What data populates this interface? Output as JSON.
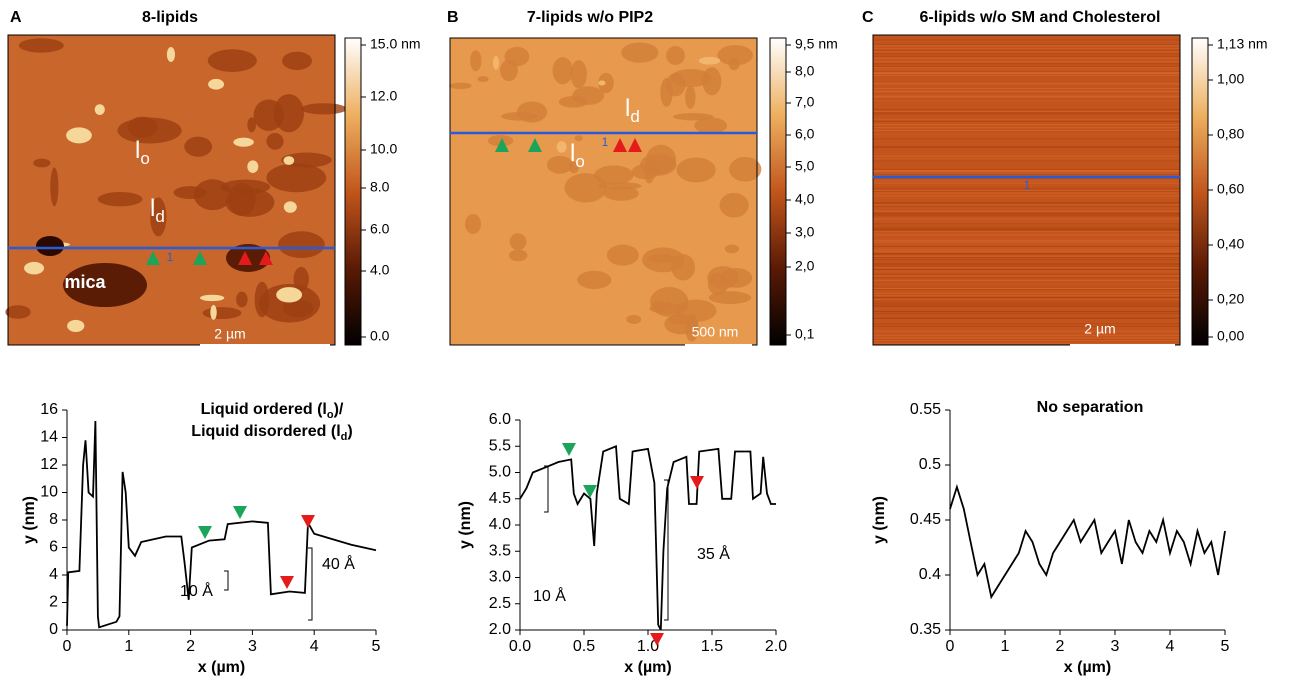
{
  "panels": [
    {
      "label": "A",
      "title": "8-lipids",
      "colorbar": [
        "15.0 nm",
        "12.0",
        "10.0",
        "8.0",
        "6.0",
        "4.0",
        "0.0"
      ],
      "image_labels": [
        {
          "main": "l",
          "sub": "o"
        },
        {
          "main": "l",
          "sub": "d"
        }
      ],
      "texts": [
        "mica",
        "1",
        "2 µm"
      ]
    },
    {
      "label": "B",
      "title": "7-lipids w/o PIP2",
      "colorbar": [
        "9,5 nm",
        "8,0",
        "7,0",
        "6,0",
        "5,0",
        "4,0",
        "3,0",
        "2,0",
        "0,1"
      ],
      "image_labels": [
        {
          "main": "l",
          "sub": "d"
        },
        {
          "main": "l",
          "sub": "o"
        }
      ],
      "texts": [
        "1",
        "500 nm"
      ]
    },
    {
      "label": "C",
      "title": "6-lipids w/o SM and Cholesterol",
      "colorbar": [
        "1,13 nm",
        "1,00",
        "0,80",
        "0,60",
        "0,40",
        "0,20",
        "0,00"
      ],
      "image_labels": [],
      "texts": [
        "1",
        "2 µm"
      ]
    }
  ],
  "chart_data": [
    {
      "type": "line",
      "title": [
        [
          "Liquid ordered (l",
          "o",
          ")/"
        ],
        [
          "Liquid disordered (l",
          "d",
          ")"
        ]
      ],
      "xlabel": "x (µm)",
      "ylabel": "y (nm)",
      "x": [
        0,
        0.02,
        0.2,
        0.26,
        0.3,
        0.35,
        0.42,
        0.46,
        0.5,
        0.52,
        0.8,
        0.85,
        0.9,
        0.95,
        1.0,
        1.1,
        1.2,
        1.6,
        1.85,
        1.9,
        1.97,
        2.02,
        2.3,
        2.55,
        2.6,
        3.0,
        3.25,
        3.3,
        3.6,
        3.85,
        3.9,
        4.0,
        4.3,
        4.6,
        5.0
      ],
      "series": [
        {
          "color": "#000000",
          "values": [
            0.3,
            4.2,
            4.3,
            12,
            13.8,
            10,
            9.7,
            15.2,
            1,
            0.2,
            0.6,
            1.0,
            11.5,
            10,
            6,
            5.4,
            6.4,
            6.8,
            6.8,
            5,
            2.2,
            6,
            6.5,
            6.6,
            7.7,
            7.9,
            7.8,
            2.6,
            2.8,
            2.7,
            7.8,
            7.0,
            6.6,
            6.2,
            5.8
          ]
        }
      ],
      "xlim": [
        0,
        5
      ],
      "ylim": [
        0,
        16
      ],
      "xticks": [
        0,
        1,
        2,
        3,
        4,
        5
      ],
      "yticks": [
        0,
        2,
        4,
        6,
        8,
        10,
        12,
        14,
        16
      ],
      "annotations": [
        "10 Å",
        "40 Å"
      ]
    },
    {
      "type": "line",
      "xlabel": "x (µm)",
      "ylabel": "y (nm)",
      "x": [
        0,
        0.05,
        0.1,
        0.2,
        0.3,
        0.4,
        0.42,
        0.45,
        0.5,
        0.55,
        0.58,
        0.6,
        0.65,
        0.75,
        0.78,
        0.85,
        0.88,
        1.0,
        1.05,
        1.08,
        1.1,
        1.12,
        1.15,
        1.2,
        1.3,
        1.32,
        1.38,
        1.4,
        1.55,
        1.58,
        1.65,
        1.68,
        1.8,
        1.82,
        1.88,
        1.9,
        1.93,
        1.96,
        2.0
      ],
      "series": [
        {
          "color": "#000000",
          "values": [
            4.5,
            4.7,
            5.0,
            5.1,
            5.2,
            5.25,
            4.6,
            4.4,
            4.6,
            4.5,
            3.6,
            4.6,
            5.4,
            5.5,
            4.5,
            4.4,
            5.4,
            5.45,
            4.8,
            2.1,
            2.0,
            3.5,
            4.7,
            5.2,
            5.3,
            4.4,
            4.4,
            5.4,
            5.45,
            4.5,
            4.5,
            5.4,
            5.4,
            4.5,
            4.6,
            5.3,
            4.6,
            4.4,
            4.4
          ]
        }
      ],
      "xlim": [
        0,
        2
      ],
      "ylim": [
        2,
        6
      ],
      "xticks": [
        {
          "value": 0,
          "label": "0.0"
        },
        0.5,
        {
          "value": 1,
          "label": "1.0"
        },
        1.5,
        {
          "value": 2,
          "label": "2.0"
        }
      ],
      "yticks": [
        {
          "value": 2,
          "label": "2.0"
        },
        2.5,
        {
          "value": 3,
          "label": "3.0"
        },
        3.5,
        {
          "value": 4,
          "label": "4.0"
        },
        4.5,
        {
          "value": 5,
          "label": "5.0"
        },
        5.5,
        {
          "value": 6,
          "label": "6.0"
        }
      ],
      "annotations": [
        "10 Å",
        "35 Å"
      ]
    },
    {
      "type": "line",
      "title": "No separation",
      "xlabel": "x (µm)",
      "ylabel": "y (nm)",
      "x": [
        0,
        0.125,
        0.25,
        0.375,
        0.5,
        0.625,
        0.75,
        0.875,
        1.0,
        1.125,
        1.25,
        1.375,
        1.5,
        1.625,
        1.75,
        1.875,
        2.0,
        2.125,
        2.25,
        2.375,
        2.5,
        2.625,
        2.75,
        2.875,
        3.0,
        3.125,
        3.25,
        3.375,
        3.5,
        3.625,
        3.75,
        3.875,
        4.0,
        4.125,
        4.25,
        4.375,
        4.5,
        4.625,
        4.75,
        4.875,
        5.0
      ],
      "series": [
        {
          "color": "#000000",
          "values": [
            0.46,
            0.48,
            0.46,
            0.43,
            0.4,
            0.41,
            0.38,
            0.39,
            0.4,
            0.41,
            0.42,
            0.44,
            0.43,
            0.41,
            0.4,
            0.42,
            0.43,
            0.44,
            0.45,
            0.43,
            0.44,
            0.45,
            0.42,
            0.43,
            0.44,
            0.41,
            0.45,
            0.43,
            0.42,
            0.44,
            0.43,
            0.45,
            0.42,
            0.44,
            0.43,
            0.41,
            0.44,
            0.42,
            0.43,
            0.4,
            0.44
          ]
        }
      ],
      "xlim": [
        0,
        5
      ],
      "ylim": [
        0.35,
        0.55
      ],
      "xticks": [
        0,
        1,
        2,
        3,
        4,
        5
      ],
      "yticks": [
        0.35,
        0.4,
        0.45,
        0.5,
        0.55
      ],
      "annotations": []
    }
  ]
}
